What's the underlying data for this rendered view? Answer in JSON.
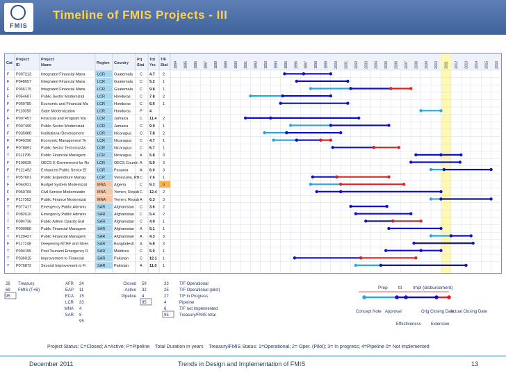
{
  "header": {
    "logo_text": "FMIS",
    "title": "Timeline of FMIS Projects - III"
  },
  "table": {
    "columns": {
      "cat": "Cat",
      "project_id": "Project ID",
      "project_name": "Project Name",
      "region": "Region",
      "country": "Country",
      "prj_stat": "Prj Stat",
      "tot_yrs": "Tot Yrs",
      "tf_stat": "T/F Stat"
    },
    "years": [
      "1984",
      "1985",
      "1986",
      "1987",
      "1988",
      "1989",
      "1990",
      "1991",
      "1992",
      "1993",
      "1994",
      "1995",
      "1996",
      "1997",
      "1998",
      "1999",
      "2000",
      "2001",
      "2002",
      "2003",
      "2004",
      "2005",
      "2006",
      "2007",
      "2008",
      "2009",
      "2010",
      "2011",
      "2012",
      "2013",
      "2014",
      "2015",
      "2016"
    ],
    "highlight_year": "2011",
    "rows": [
      {
        "cat": "F",
        "id": "P007213",
        "name": "Integrated Financial Mana",
        "region": "LCR",
        "country": "Guatemala",
        "prj": "C",
        "yrs": "4.7",
        "tf": "2",
        "bars": [
          [
            1995.4,
            1997.3,
            "db"
          ],
          [
            1997.3,
            2000.0,
            "db"
          ]
        ]
      },
      {
        "cat": "F",
        "id": "P048657",
        "name": "Integrated Financial Mana",
        "region": "LCR",
        "country": "Guatemala",
        "prj": "C",
        "yrs": "5.2",
        "tf": "1",
        "bars": [
          [
            1996.6,
            2001.7,
            "db"
          ]
        ]
      },
      {
        "cat": "F",
        "id": "P066175",
        "name": "Integrated Financial Mana",
        "region": "LCR",
        "country": "Guatemala",
        "prj": "C",
        "yrs": "9.8",
        "tf": "1",
        "bars": [
          [
            1998.0,
            2002.0,
            "lb"
          ],
          [
            2002.0,
            2006.0,
            "db"
          ],
          [
            2006.0,
            2008.0,
            "rd"
          ]
        ]
      },
      {
        "cat": "F",
        "id": "P054607",
        "name": "Public Sector Modernizati",
        "region": "LCR",
        "country": "Honduras",
        "prj": "C",
        "yrs": "7.8",
        "tf": "2",
        "bars": [
          [
            1992.0,
            1995.2,
            "lb"
          ],
          [
            1995.2,
            2000.0,
            "db"
          ]
        ]
      },
      {
        "cat": "F",
        "id": "P060785",
        "name": "Economic and Financial Ma",
        "region": "LCR",
        "country": "Honduras",
        "prj": "C",
        "yrs": "6.6",
        "tf": "1",
        "bars": [
          [
            1995.0,
            2001.7,
            "db"
          ]
        ]
      },
      {
        "cat": "F",
        "id": "P110050",
        "name": "State Modernization",
        "region": "LCR",
        "country": "Honduras",
        "prj": "P",
        "yrs": "4",
        "tf": "",
        "bars": [
          [
            2009.0,
            2011.0,
            "lb"
          ]
        ]
      },
      {
        "cat": "F",
        "id": "P007457",
        "name": "Financial and Program Ma",
        "region": "LCR",
        "country": "Jamaica",
        "prj": "C",
        "yrs": "11.4",
        "tf": "2",
        "bars": [
          [
            1991.5,
            1994.0,
            "db"
          ],
          [
            1994.0,
            2002.8,
            "db"
          ]
        ]
      },
      {
        "cat": "F",
        "id": "P007490",
        "name": "Public Sector Modernizati",
        "region": "LCR",
        "country": "Jamaica",
        "prj": "C",
        "yrs": "9.9",
        "tf": "1",
        "bars": [
          [
            1996.0,
            2000.0,
            "lb"
          ],
          [
            2000.0,
            2005.8,
            "db"
          ]
        ]
      },
      {
        "cat": "F",
        "id": "P035080",
        "name": "Institutional Development",
        "region": "LCR",
        "country": "Nicaragua",
        "prj": "C",
        "yrs": "7.8",
        "tf": "2",
        "bars": [
          [
            1993.4,
            1995.6,
            "lb"
          ],
          [
            1995.6,
            2001.0,
            "db"
          ]
        ]
      },
      {
        "cat": "F",
        "id": "P049296",
        "name": "Economic Management Te",
        "region": "LCR",
        "country": "Nicaragua",
        "prj": "C",
        "yrs": "4.7",
        "tf": "1",
        "bars": [
          [
            1994.3,
            1996.6,
            "lb"
          ],
          [
            1996.6,
            1999.0,
            "db"
          ],
          [
            1999.0,
            2000.0,
            "rd"
          ]
        ]
      },
      {
        "cat": "F",
        "id": "P078891",
        "name": "Public Sector Technical As",
        "region": "LCR",
        "country": "Nicaragua",
        "prj": "C",
        "yrs": "6.7",
        "tf": "1",
        "bars": [
          [
            2000.2,
            2004.3,
            "db"
          ],
          [
            2004.3,
            2006.8,
            "rd"
          ]
        ]
      },
      {
        "cat": "T",
        "id": "P111795",
        "name": "Public Financial Managem",
        "region": "LCR",
        "country": "Nicaragua",
        "prj": "A",
        "yrs": "5.8",
        "tf": "3",
        "bars": [
          [
            2008.5,
            2011.0,
            "db"
          ],
          [
            2011.0,
            2013.0,
            "db"
          ]
        ]
      },
      {
        "cat": "F",
        "id": "P100635",
        "name": "OECS E-Government for Re",
        "region": "LCR",
        "country": "OECS Countri",
        "prj": "A",
        "yrs": "5.9",
        "tf": "3",
        "bars": [
          [
            2008.0,
            2012.9,
            "db"
          ]
        ]
      },
      {
        "cat": "F",
        "id": "P121492",
        "name": "Enhanced Public Sector Ef",
        "region": "LCR",
        "country": "Panama",
        "prj": "A",
        "yrs": "6.0",
        "tf": "3",
        "bars": [
          [
            2010.0,
            2011.3,
            "lb"
          ],
          [
            2011.3,
            2016.0,
            "db"
          ]
        ]
      },
      {
        "cat": "T",
        "id": "P057601",
        "name": "Public Expenditure Manag",
        "region": "LCR",
        "country": "Venezuela, RB",
        "prj": "C",
        "yrs": "7.6",
        "tf": "1",
        "bars": [
          [
            1998.2,
            2000.6,
            "db"
          ],
          [
            2000.6,
            2005.8,
            "rd"
          ]
        ]
      },
      {
        "cat": "F",
        "id": "P064921",
        "name": "Budget System Modernizat",
        "region": "MNA",
        "country": "Algeria",
        "prj": "C",
        "yrs": "9.3",
        "tf": "0",
        "bars": [
          [
            1998.0,
            2001.0,
            "lb"
          ],
          [
            2001.0,
            2007.3,
            "rd"
          ]
        ]
      },
      {
        "cat": "F",
        "id": "P050706",
        "name": "Civil Service Modernizatio",
        "region": "MNA",
        "country": "Yemen, Repub",
        "prj": "C",
        "yrs": "12.4",
        "tf": "2",
        "bars": [
          [
            1998.6,
            2001.0,
            "db"
          ],
          [
            2001.0,
            2011.0,
            "db"
          ]
        ]
      },
      {
        "cat": "F",
        "id": "P117363",
        "name": "Public Finance Modernizat",
        "region": "MNA",
        "country": "Yemen, Repub",
        "prj": "A",
        "yrs": "6.3",
        "tf": "3",
        "bars": [
          [
            2010.0,
            2011.0,
            "lb"
          ],
          [
            2011.0,
            2016.0,
            "db"
          ]
        ]
      },
      {
        "cat": "T",
        "id": "P077417",
        "name": "Emergency Public Adminis",
        "region": "SAR",
        "country": "Afghanistan",
        "prj": "C",
        "yrs": "3.6",
        "tf": "2",
        "bars": [
          [
            2002.0,
            2005.6,
            "db"
          ]
        ]
      },
      {
        "cat": "T",
        "id": "P082610",
        "name": "Emergency Public Adminis",
        "region": "SAR",
        "country": "Afghanistan",
        "prj": "C",
        "yrs": "5.4",
        "tf": "2",
        "bars": [
          [
            2002.5,
            2008.0,
            "db"
          ]
        ]
      },
      {
        "cat": "T",
        "id": "P084736",
        "name": "Public Admin Cpacity Buil",
        "region": "SAR",
        "country": "Afghanistan",
        "prj": "C",
        "yrs": "4.9",
        "tf": "1",
        "bars": [
          [
            2003.5,
            2006.2,
            "db"
          ],
          [
            2006.2,
            2009.0,
            "rd"
          ]
        ]
      },
      {
        "cat": "T",
        "id": "P099980",
        "name": "Public Financial Managem",
        "region": "SAR",
        "country": "Afghanistan",
        "prj": "A",
        "yrs": "5.1",
        "tf": "1",
        "bars": [
          [
            2005.8,
            2011.0,
            "db"
          ]
        ]
      },
      {
        "cat": "T",
        "id": "P120427",
        "name": "Public Financial Managem",
        "region": "SAR",
        "country": "Afghanistan",
        "prj": "A",
        "yrs": "4.3",
        "tf": "3",
        "bars": [
          [
            2010.0,
            2012.0,
            "lb"
          ],
          [
            2012.0,
            2014.0,
            "db"
          ]
        ]
      },
      {
        "cat": "F",
        "id": "P117248",
        "name": "Deepening MTBF and Stren",
        "region": "SAR",
        "country": "Bangladesh",
        "prj": "A",
        "yrs": "5.8",
        "tf": "3",
        "bars": [
          [
            2008.3,
            2014.2,
            "db"
          ]
        ]
      },
      {
        "cat": "T",
        "id": "P094195",
        "name": "Post Tsunami Emergency R",
        "region": "SAR",
        "country": "Maldives",
        "prj": "C",
        "yrs": "5.0",
        "tf": "1",
        "bars": [
          [
            2005.5,
            2009.0,
            "db"
          ],
          [
            2009.0,
            2011.0,
            "db"
          ]
        ]
      },
      {
        "cat": "T",
        "id": "P036015",
        "name": "Improvement to Financial",
        "region": "SAR",
        "country": "Pakistan",
        "prj": "C",
        "yrs": "12.1",
        "tf": "1",
        "bars": [
          [
            1996.4,
            2003.0,
            "db"
          ],
          [
            2003.0,
            2008.5,
            "rd"
          ]
        ]
      },
      {
        "cat": "T",
        "id": "P076872",
        "name": "Second Improvement to Fi",
        "region": "SAR",
        "country": "Pakistan",
        "prj": "A",
        "yrs": "11.0",
        "tf": "1",
        "bars": [
          [
            2002.5,
            2005.0,
            "lb"
          ],
          [
            2005.0,
            2013.5,
            "db"
          ]
        ]
      }
    ]
  },
  "summary": {
    "counts_left": [
      [
        "26",
        "Treasury"
      ],
      [
        "69",
        "FMIS (T+B)"
      ],
      [
        "95",
        ""
      ]
    ],
    "regions": [
      [
        "AFR",
        "24"
      ],
      [
        "EAP",
        "11"
      ],
      [
        "ECA",
        "15"
      ],
      [
        "LCR",
        "33"
      ],
      [
        "MNA",
        "4"
      ],
      [
        "SAR",
        "8"
      ],
      [
        "",
        "95"
      ]
    ],
    "status": [
      [
        "Closed",
        "59"
      ],
      [
        "Active",
        "32"
      ],
      [
        "Pipeline",
        "4"
      ],
      [
        "",
        "95"
      ]
    ],
    "tf": [
      [
        "33",
        "T/F Operational"
      ],
      [
        "25",
        "T/F Operational (pilot)"
      ],
      [
        "27",
        "T/F in Progress"
      ],
      [
        "4",
        "Pipeline"
      ],
      [
        "6",
        "T/F not Implemented"
      ],
      [
        "95",
        "Treasury/FMIS total"
      ]
    ]
  },
  "legend": {
    "top": [
      "Prep",
      "ttl",
      "Impl (disbursement)"
    ],
    "bottom": [
      "Concept Note",
      "Approval",
      "Effectiveness",
      "Orig Closing Date",
      "Extension",
      "Actual Closing Date"
    ]
  },
  "footer": {
    "project_status": "Project Status: C=Closed; A=Active; P=Pipeline",
    "duration": "Total Duration in years",
    "fmis_status": "Treasury/FMIS Status: 1=Operational; 2= Oper. (Pilot); 3= In progress; 4=Pipeline 0= Not implemented",
    "date": "December 2011",
    "center": "Trends in Design and Implementation of FMIS",
    "page": "13"
  },
  "colors": {
    "dark_blue": "#1010c8",
    "light_blue": "#2aa6d8",
    "red": "#e02020",
    "highlight": "#fff8b0",
    "header_bg": "#4469a4",
    "title": "#ffd34d"
  }
}
